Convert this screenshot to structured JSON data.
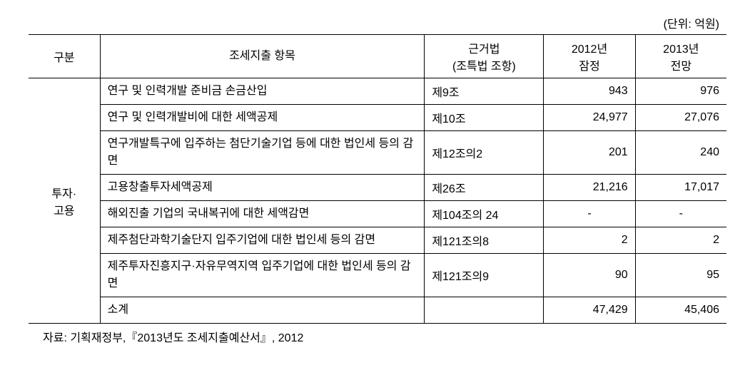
{
  "unit_label": "(단위: 억원)",
  "header": {
    "col1": "구분",
    "col2": "조세지출 항목",
    "col3_line1": "근거법",
    "col3_line2": "(조특법 조항)",
    "col4_line1": "2012년",
    "col4_line2": "잠정",
    "col5_line1": "2013년",
    "col5_line2": "전망"
  },
  "category_label_line1": "투자·",
  "category_label_line2": "고용",
  "rows": [
    {
      "item": "연구 및 인력개발 준비금 손금산입",
      "law": "제9조",
      "y2012": "943",
      "y2013": "976"
    },
    {
      "item": "연구 및 인력개발비에 대한 세액공제",
      "law": "제10조",
      "y2012": "24,977",
      "y2013": "27,076"
    },
    {
      "item": "연구개발특구에 입주하는 첨단기술기업 등에 대한 법인세 등의 감면",
      "law": "제12조의2",
      "y2012": "201",
      "y2013": "240"
    },
    {
      "item": "고용창출투자세액공제",
      "law": "제26조",
      "y2012": "21,216",
      "y2013": "17,017"
    },
    {
      "item": "해외진출 기업의 국내복귀에 대한 세액감면",
      "law": "제104조의 24",
      "y2012": "-",
      "y2013": "-"
    },
    {
      "item": "제주첨단과학기술단지 입주기업에 대한 법인세 등의 감면",
      "law": "제121조의8",
      "y2012": "2",
      "y2013": "2"
    },
    {
      "item": "제주투자진흥지구·자유무역지역 입주기업에 대한 법인세 등의 감면",
      "law": "제121조의9",
      "y2012": "90",
      "y2013": "95"
    },
    {
      "item": "소계",
      "law": "",
      "y2012": "47,429",
      "y2013": "45,406"
    }
  ],
  "source": "자료: 기획재정부,『2013년도 조세지출예산서』, 2012"
}
